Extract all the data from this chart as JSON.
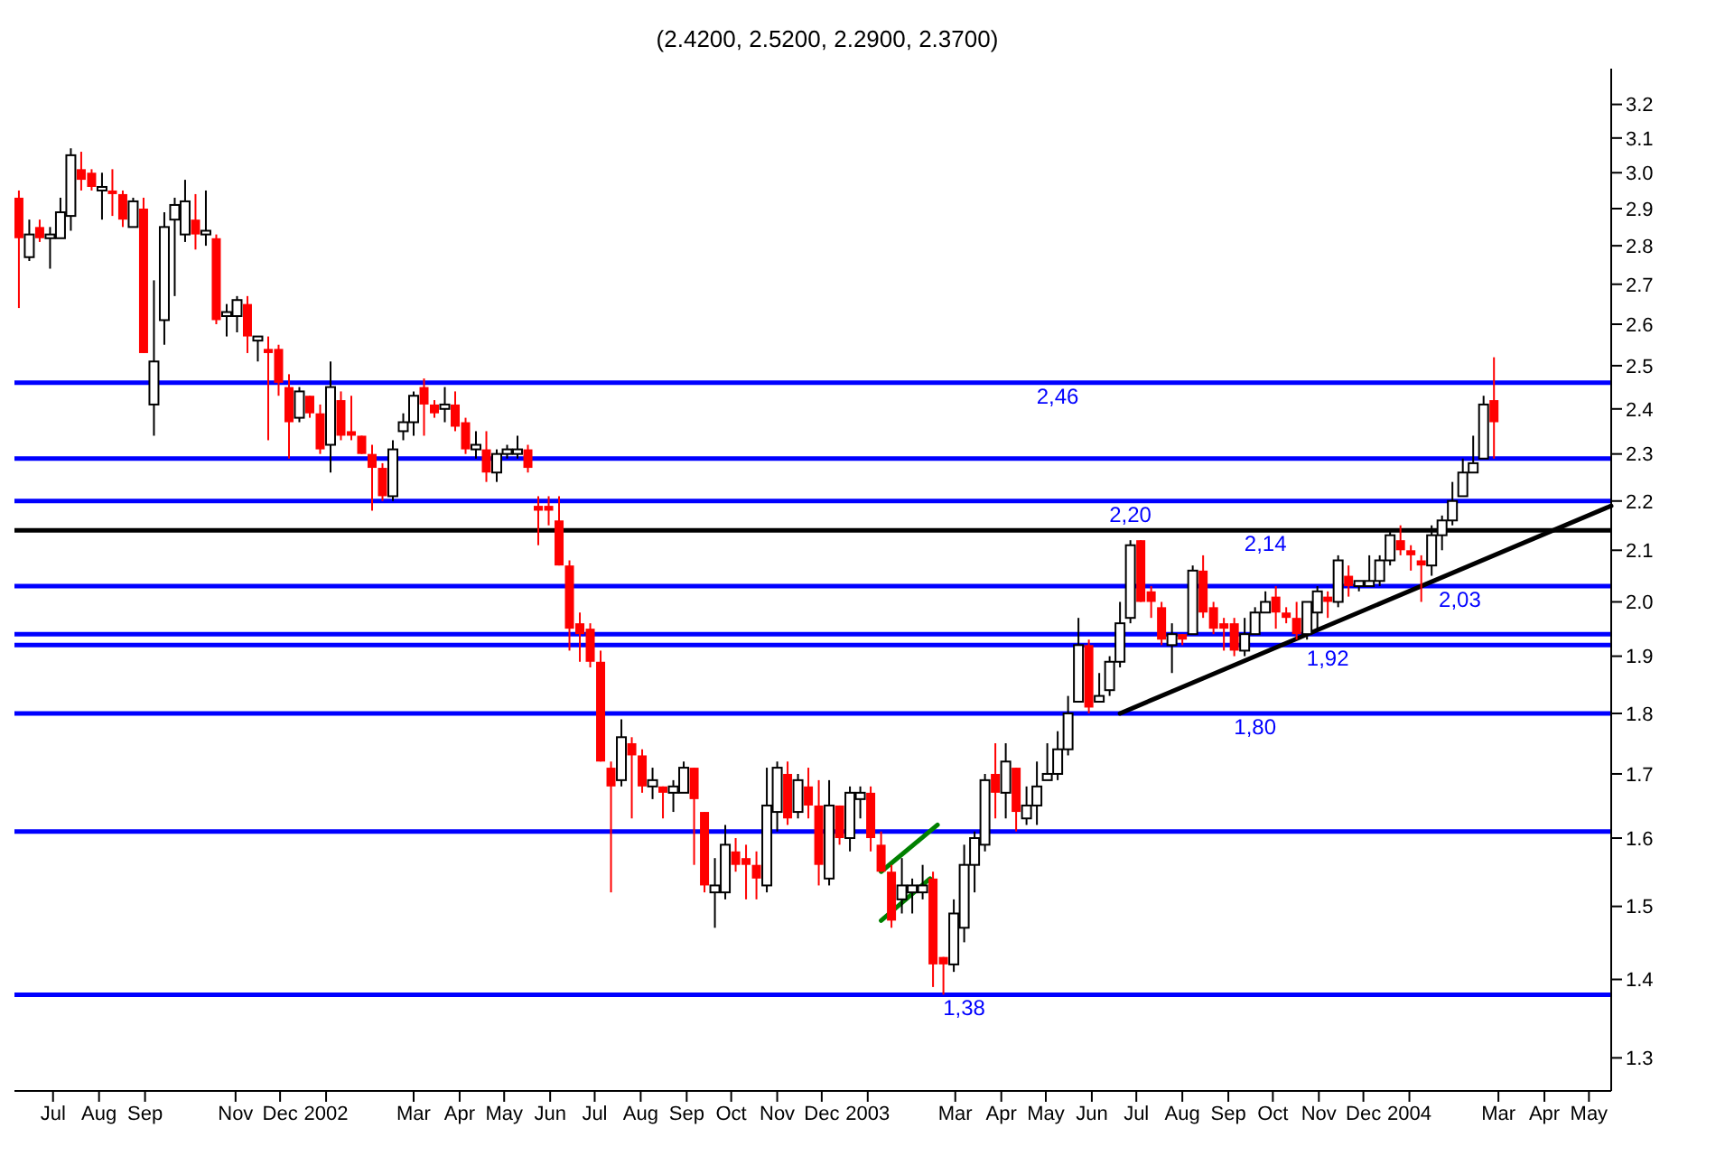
{
  "chart_data": {
    "type": "candlestick",
    "title": "(2.4200, 2.5200, 2.2900, 2.3700)",
    "x": [
      "2001-06-08",
      "2001-06-15",
      "2001-06-22",
      "2001-06-29",
      "2001-07-06",
      "2001-07-13",
      "2001-07-20",
      "2001-07-27",
      "2001-08-03",
      "2001-08-10",
      "2001-08-17",
      "2001-08-24",
      "2001-08-31",
      "2001-09-07",
      "2001-09-14",
      "2001-09-21",
      "2001-09-28",
      "2001-10-05",
      "2001-10-12",
      "2001-10-19",
      "2001-10-26",
      "2001-11-02",
      "2001-11-09",
      "2001-11-16",
      "2001-11-23",
      "2001-11-30",
      "2001-12-07",
      "2001-12-14",
      "2001-12-21",
      "2001-12-28",
      "2002-01-04",
      "2002-01-11",
      "2002-01-18",
      "2002-01-25",
      "2002-02-01",
      "2002-02-08",
      "2002-02-15",
      "2002-02-22",
      "2002-03-01",
      "2002-03-08",
      "2002-03-15",
      "2002-03-22",
      "2002-03-29",
      "2002-04-05",
      "2002-04-12",
      "2002-04-19",
      "2002-04-26",
      "2002-05-03",
      "2002-05-10",
      "2002-05-17",
      "2002-05-24",
      "2002-05-31",
      "2002-06-07",
      "2002-06-14",
      "2002-06-21",
      "2002-06-28",
      "2002-07-05",
      "2002-07-12",
      "2002-07-19",
      "2002-07-26",
      "2002-08-02",
      "2002-08-09",
      "2002-08-16",
      "2002-08-23",
      "2002-08-30",
      "2002-09-06",
      "2002-09-13",
      "2002-09-20",
      "2002-09-27",
      "2002-10-04",
      "2002-10-11",
      "2002-10-18",
      "2002-10-25",
      "2002-11-01",
      "2002-11-08",
      "2002-11-15",
      "2002-11-22",
      "2002-11-29",
      "2002-12-06",
      "2002-12-13",
      "2002-12-20",
      "2002-12-27",
      "2003-01-03",
      "2003-01-10",
      "2003-01-17",
      "2003-01-24",
      "2003-01-31",
      "2003-02-07",
      "2003-02-14",
      "2003-02-21",
      "2003-02-28",
      "2003-03-07",
      "2003-03-14",
      "2003-03-21",
      "2003-03-28",
      "2003-04-04",
      "2003-04-11",
      "2003-04-18",
      "2003-04-25",
      "2003-05-02",
      "2003-05-09",
      "2003-05-16",
      "2003-05-23",
      "2003-05-30",
      "2003-06-06",
      "2003-06-13",
      "2003-06-20",
      "2003-06-27",
      "2003-07-04",
      "2003-07-11",
      "2003-07-18",
      "2003-07-25",
      "2003-08-01",
      "2003-08-08",
      "2003-08-15",
      "2003-08-22",
      "2003-08-29",
      "2003-09-05",
      "2003-09-12",
      "2003-09-19",
      "2003-09-26",
      "2003-10-03",
      "2003-10-10",
      "2003-10-17",
      "2003-10-24",
      "2003-10-31",
      "2003-11-07",
      "2003-11-14",
      "2003-11-21",
      "2003-11-28",
      "2003-12-05",
      "2003-12-12",
      "2003-12-19",
      "2003-12-26",
      "2004-01-02",
      "2004-01-09",
      "2004-01-16",
      "2004-01-23",
      "2004-01-30",
      "2004-02-06",
      "2004-02-13",
      "2004-02-20",
      "2004-02-27"
    ],
    "ohlc": [
      [
        2.93,
        2.95,
        2.64,
        2.82
      ],
      [
        2.77,
        2.87,
        2.76,
        2.83
      ],
      [
        2.85,
        2.87,
        2.81,
        2.82
      ],
      [
        2.82,
        2.85,
        2.74,
        2.83
      ],
      [
        2.82,
        2.93,
        2.82,
        2.89
      ],
      [
        2.88,
        3.07,
        2.84,
        3.05
      ],
      [
        3.01,
        3.06,
        2.95,
        2.98
      ],
      [
        3.0,
        3.01,
        2.95,
        2.96
      ],
      [
        2.95,
        3.0,
        2.87,
        2.96
      ],
      [
        2.95,
        3.01,
        2.88,
        2.94
      ],
      [
        2.94,
        2.95,
        2.85,
        2.87
      ],
      [
        2.85,
        2.93,
        2.85,
        2.92
      ],
      [
        2.9,
        2.93,
        2.53,
        2.53
      ],
      [
        2.41,
        2.71,
        2.34,
        2.51
      ],
      [
        2.61,
        2.89,
        2.55,
        2.85
      ],
      [
        2.87,
        2.93,
        2.67,
        2.91
      ],
      [
        2.83,
        2.98,
        2.81,
        2.92
      ],
      [
        2.87,
        2.94,
        2.79,
        2.83
      ],
      [
        2.83,
        2.95,
        2.8,
        2.84
      ],
      [
        2.82,
        2.83,
        2.6,
        2.61
      ],
      [
        2.62,
        2.65,
        2.57,
        2.63
      ],
      [
        2.62,
        2.67,
        2.58,
        2.66
      ],
      [
        2.65,
        2.67,
        2.53,
        2.57
      ],
      [
        2.56,
        2.57,
        2.51,
        2.57
      ],
      [
        2.54,
        2.57,
        2.33,
        2.53
      ],
      [
        2.54,
        2.55,
        2.43,
        2.46
      ],
      [
        2.45,
        2.48,
        2.29,
        2.37
      ],
      [
        2.38,
        2.45,
        2.37,
        2.44
      ],
      [
        2.43,
        2.43,
        2.38,
        2.39
      ],
      [
        2.39,
        2.41,
        2.3,
        2.31
      ],
      [
        2.32,
        2.51,
        2.26,
        2.45
      ],
      [
        2.42,
        2.44,
        2.33,
        2.34
      ],
      [
        2.35,
        2.43,
        2.33,
        2.34
      ],
      [
        2.34,
        2.34,
        2.3,
        2.3
      ],
      [
        2.3,
        2.32,
        2.18,
        2.27
      ],
      [
        2.27,
        2.28,
        2.2,
        2.21
      ],
      [
        2.21,
        2.33,
        2.2,
        2.31
      ],
      [
        2.35,
        2.39,
        2.33,
        2.37
      ],
      [
        2.37,
        2.44,
        2.34,
        2.43
      ],
      [
        2.45,
        2.47,
        2.34,
        2.41
      ],
      [
        2.41,
        2.42,
        2.38,
        2.39
      ],
      [
        2.4,
        2.45,
        2.37,
        2.41
      ],
      [
        2.41,
        2.44,
        2.35,
        2.36
      ],
      [
        2.37,
        2.38,
        2.3,
        2.31
      ],
      [
        2.31,
        2.35,
        2.29,
        2.32
      ],
      [
        2.31,
        2.35,
        2.24,
        2.26
      ],
      [
        2.26,
        2.31,
        2.24,
        2.3
      ],
      [
        2.3,
        2.32,
        2.29,
        2.31
      ],
      [
        2.3,
        2.34,
        2.29,
        2.31
      ],
      [
        2.31,
        2.32,
        2.26,
        2.27
      ],
      [
        2.19,
        2.21,
        2.11,
        2.18
      ],
      [
        2.19,
        2.21,
        2.15,
        2.18
      ],
      [
        2.16,
        2.21,
        2.07,
        2.07
      ],
      [
        2.07,
        2.08,
        1.91,
        1.95
      ],
      [
        1.96,
        1.98,
        1.89,
        1.94
      ],
      [
        1.95,
        1.96,
        1.88,
        1.89
      ],
      [
        1.89,
        1.91,
        1.72,
        1.72
      ],
      [
        1.71,
        1.72,
        1.52,
        1.68
      ],
      [
        1.69,
        1.79,
        1.68,
        1.76
      ],
      [
        1.75,
        1.76,
        1.63,
        1.73
      ],
      [
        1.73,
        1.74,
        1.67,
        1.68
      ],
      [
        1.68,
        1.71,
        1.66,
        1.69
      ],
      [
        1.68,
        1.68,
        1.63,
        1.67
      ],
      [
        1.67,
        1.69,
        1.64,
        1.68
      ],
      [
        1.67,
        1.72,
        1.67,
        1.71
      ],
      [
        1.71,
        1.71,
        1.56,
        1.66
      ],
      [
        1.64,
        1.64,
        1.52,
        1.53
      ],
      [
        1.52,
        1.57,
        1.47,
        1.53
      ],
      [
        1.52,
        1.62,
        1.51,
        1.59
      ],
      [
        1.58,
        1.6,
        1.55,
        1.56
      ],
      [
        1.57,
        1.59,
        1.51,
        1.56
      ],
      [
        1.56,
        1.58,
        1.51,
        1.54
      ],
      [
        1.53,
        1.71,
        1.52,
        1.65
      ],
      [
        1.64,
        1.72,
        1.61,
        1.71
      ],
      [
        1.7,
        1.72,
        1.62,
        1.63
      ],
      [
        1.64,
        1.7,
        1.63,
        1.69
      ],
      [
        1.68,
        1.71,
        1.63,
        1.65
      ],
      [
        1.65,
        1.69,
        1.53,
        1.56
      ],
      [
        1.54,
        1.69,
        1.53,
        1.65
      ],
      [
        1.65,
        1.65,
        1.59,
        1.6
      ],
      [
        1.6,
        1.68,
        1.58,
        1.67
      ],
      [
        1.66,
        1.68,
        1.63,
        1.67
      ],
      [
        1.67,
        1.68,
        1.58,
        1.6
      ],
      [
        1.59,
        1.61,
        1.55,
        1.55
      ],
      [
        1.55,
        1.56,
        1.47,
        1.48
      ],
      [
        1.51,
        1.57,
        1.49,
        1.53
      ],
      [
        1.52,
        1.54,
        1.49,
        1.53
      ],
      [
        1.52,
        1.56,
        1.51,
        1.53
      ],
      [
        1.54,
        1.55,
        1.39,
        1.42
      ],
      [
        1.43,
        1.43,
        1.38,
        1.42
      ],
      [
        1.42,
        1.51,
        1.41,
        1.49
      ],
      [
        1.47,
        1.59,
        1.45,
        1.56
      ],
      [
        1.56,
        1.61,
        1.52,
        1.6
      ],
      [
        1.59,
        1.7,
        1.58,
        1.69
      ],
      [
        1.7,
        1.75,
        1.63,
        1.67
      ],
      [
        1.67,
        1.75,
        1.63,
        1.72
      ],
      [
        1.71,
        1.71,
        1.61,
        1.64
      ],
      [
        1.63,
        1.68,
        1.62,
        1.65
      ],
      [
        1.65,
        1.72,
        1.62,
        1.68
      ],
      [
        1.69,
        1.75,
        1.69,
        1.7
      ],
      [
        1.7,
        1.77,
        1.69,
        1.74
      ],
      [
        1.74,
        1.83,
        1.73,
        1.8
      ],
      [
        1.82,
        1.97,
        1.82,
        1.92
      ],
      [
        1.92,
        1.93,
        1.8,
        1.81
      ],
      [
        1.82,
        1.87,
        1.82,
        1.83
      ],
      [
        1.84,
        1.9,
        1.83,
        1.89
      ],
      [
        1.89,
        2.0,
        1.88,
        1.96
      ],
      [
        1.97,
        2.12,
        1.96,
        2.11
      ],
      [
        2.12,
        2.12,
        2.0,
        2.0
      ],
      [
        2.02,
        2.03,
        1.97,
        2.0
      ],
      [
        1.99,
        2.0,
        1.92,
        1.93
      ],
      [
        1.92,
        1.96,
        1.87,
        1.94
      ],
      [
        1.94,
        1.94,
        1.92,
        1.93
      ],
      [
        1.94,
        2.07,
        1.94,
        2.06
      ],
      [
        2.06,
        2.09,
        1.97,
        1.98
      ],
      [
        1.99,
        2.0,
        1.94,
        1.95
      ],
      [
        1.96,
        1.97,
        1.91,
        1.95
      ],
      [
        1.96,
        1.97,
        1.9,
        1.91
      ],
      [
        1.91,
        1.97,
        1.9,
        1.94
      ],
      [
        1.94,
        1.99,
        1.94,
        1.98
      ],
      [
        1.98,
        2.02,
        1.98,
        2.0
      ],
      [
        2.01,
        2.03,
        1.95,
        1.98
      ],
      [
        1.98,
        1.99,
        1.96,
        1.97
      ],
      [
        1.97,
        2.0,
        1.93,
        1.94
      ],
      [
        1.94,
        2.0,
        1.93,
        2.0
      ],
      [
        1.98,
        2.03,
        1.95,
        2.02
      ],
      [
        2.01,
        2.02,
        1.97,
        2.0
      ],
      [
        2.0,
        2.09,
        1.99,
        2.08
      ],
      [
        2.05,
        2.07,
        2.01,
        2.03
      ],
      [
        2.03,
        2.04,
        2.02,
        2.04
      ],
      [
        2.03,
        2.09,
        2.03,
        2.04
      ],
      [
        2.04,
        2.09,
        2.03,
        2.08
      ],
      [
        2.08,
        2.14,
        2.07,
        2.13
      ],
      [
        2.12,
        2.15,
        2.09,
        2.1
      ],
      [
        2.1,
        2.11,
        2.06,
        2.09
      ],
      [
        2.08,
        2.09,
        2.0,
        2.07
      ],
      [
        2.07,
        2.15,
        2.05,
        2.13
      ],
      [
        2.13,
        2.17,
        2.1,
        2.16
      ],
      [
        2.16,
        2.24,
        2.15,
        2.2
      ],
      [
        2.21,
        2.29,
        2.21,
        2.26
      ],
      [
        2.26,
        2.34,
        2.26,
        2.28
      ],
      [
        2.29,
        2.43,
        2.29,
        2.41
      ],
      [
        2.42,
        2.52,
        2.29,
        2.37
      ]
    ],
    "colors": [
      "#ff0000",
      "#ffffff",
      "#ff0000",
      "#ffffff",
      "#ffffff",
      "#ffffff",
      "#ff0000",
      "#ff0000",
      "#ffffff",
      "#ff0000",
      "#ff0000",
      "#ffffff",
      "#ff0000",
      "#ffffff",
      "#ffffff",
      "#ffffff",
      "#ffffff",
      "#ff0000",
      "#ffffff",
      "#ff0000",
      "#ffffff",
      "#ffffff",
      "#ff0000",
      "#ffffff",
      "#ff0000",
      "#ff0000",
      "#ff0000",
      "#ffffff",
      "#ff0000",
      "#ff0000",
      "#ffffff",
      "#ff0000",
      "#ff0000",
      "#ff0000",
      "#ff0000",
      "#ff0000",
      "#ffffff",
      "#ffffff",
      "#ffffff",
      "#ff0000",
      "#ff0000",
      "#ffffff",
      "#ff0000",
      "#ff0000",
      "#ffffff",
      "#ff0000",
      "#ffffff",
      "#ffffff",
      "#ffffff",
      "#ff0000",
      "#ff0000",
      "#ff0000",
      "#ff0000",
      "#ff0000",
      "#ff0000",
      "#ff0000",
      "#ff0000",
      "#ff0000",
      "#ffffff",
      "#ff0000",
      "#ff0000",
      "#ffffff",
      "#ff0000",
      "#ffffff",
      "#ffffff",
      "#ff0000",
      "#ff0000",
      "#ffffff",
      "#ffffff",
      "#ff0000",
      "#ff0000",
      "#ff0000",
      "#ffffff",
      "#ffffff",
      "#ff0000",
      "#ffffff",
      "#ff0000",
      "#ff0000",
      "#ffffff",
      "#ff0000",
      "#ffffff",
      "#ffffff",
      "#ff0000",
      "#ff0000",
      "#ff0000",
      "#ffffff",
      "#ffffff",
      "#ffffff",
      "#ff0000",
      "#ff0000",
      "#ffffff",
      "#ffffff",
      "#ffffff",
      "#ffffff",
      "#ff0000",
      "#ffffff",
      "#ff0000",
      "#ffffff",
      "#ffffff",
      "#ffffff",
      "#ffffff",
      "#ffffff",
      "#ffffff",
      "#ff0000",
      "#ffffff",
      "#ffffff",
      "#ffffff",
      "#ffffff",
      "#ff0000",
      "#ff0000",
      "#ff0000",
      "#ffffff",
      "#ff0000",
      "#ffffff",
      "#ff0000",
      "#ff0000",
      "#ff0000",
      "#ff0000",
      "#ffffff",
      "#ffffff",
      "#ffffff",
      "#ff0000",
      "#ff0000",
      "#ff0000",
      "#ffffff",
      "#ffffff",
      "#ff0000",
      "#ffffff",
      "#ff0000",
      "#ffffff",
      "#ffffff",
      "#ffffff",
      "#ffffff",
      "#ff0000",
      "#ff0000",
      "#ff0000",
      "#ffffff",
      "#ffffff",
      "#ffffff",
      "#ffffff",
      "#ffffff",
      "#ffffff",
      "#ff0000"
    ],
    "series": [
      {
        "type": "line",
        "color": "#000000",
        "x": [
          "2003-06-20",
          "2004-05-16"
        ],
        "values": [
          1.8,
          2.19
        ]
      },
      {
        "type": "line",
        "color": "#008000",
        "x": [
          "2003-01-10",
          "2003-02-17"
        ],
        "values": [
          1.55,
          1.62
        ]
      },
      {
        "type": "line",
        "color": "#008000",
        "x": [
          "2003-01-10",
          "2003-02-12"
        ],
        "values": [
          1.48,
          1.54
        ]
      }
    ],
    "ref_lines": [
      {
        "axis": "y",
        "value": 2.46,
        "color": "#0000ff"
      },
      {
        "axis": "y",
        "value": 2.29,
        "color": "#0000ff"
      },
      {
        "axis": "y",
        "value": 2.2,
        "color": "#0000ff"
      },
      {
        "axis": "y",
        "value": 2.14,
        "color": "#000000"
      },
      {
        "axis": "y",
        "value": 2.03,
        "color": "#0000ff"
      },
      {
        "axis": "y",
        "value": 1.94,
        "color": "#0000ff"
      },
      {
        "axis": "y",
        "value": 1.92,
        "color": "#0000ff"
      },
      {
        "axis": "y",
        "value": 1.8,
        "color": "#0000ff"
      },
      {
        "axis": "y",
        "value": 1.61,
        "color": "#0000ff"
      },
      {
        "axis": "y",
        "value": 1.38,
        "color": "#0000ff"
      }
    ],
    "annotations": [
      {
        "text": "2,46",
        "x": "2003-05-09",
        "y": 2.46
      },
      {
        "text": "2,20",
        "x": "2003-06-27",
        "y": 2.2
      },
      {
        "text": "2,14",
        "x": "2003-09-26",
        "y": 2.14
      },
      {
        "text": "2,03",
        "x": "2004-02-04",
        "y": 2.03
      },
      {
        "text": "1,92",
        "x": "2003-11-07",
        "y": 1.92
      },
      {
        "text": "1,80",
        "x": "2003-09-19",
        "y": 1.8
      },
      {
        "text": "1,38",
        "x": "2003-03-07",
        "y": 1.38
      }
    ],
    "log": "y",
    "xlim": [
      "2001-06-05",
      "2004-05-16"
    ],
    "xticks": [
      {
        "value": "2001-07-01",
        "label": "Jul"
      },
      {
        "value": "2001-08-01",
        "label": "Aug"
      },
      {
        "value": "2001-09-01",
        "label": "Sep"
      },
      {
        "value": "2001-11-01",
        "label": "Nov"
      },
      {
        "value": "2001-12-01",
        "label": "Dec"
      },
      {
        "value": "2002-01-01",
        "label": "2002"
      },
      {
        "value": "2002-03-01",
        "label": "Mar"
      },
      {
        "value": "2002-04-01",
        "label": "Apr"
      },
      {
        "value": "2002-05-01",
        "label": "May"
      },
      {
        "value": "2002-06-01",
        "label": "Jun"
      },
      {
        "value": "2002-07-01",
        "label": "Jul"
      },
      {
        "value": "2002-08-01",
        "label": "Aug"
      },
      {
        "value": "2002-09-01",
        "label": "Sep"
      },
      {
        "value": "2002-10-01",
        "label": "Oct"
      },
      {
        "value": "2002-11-01",
        "label": "Nov"
      },
      {
        "value": "2002-12-01",
        "label": "Dec"
      },
      {
        "value": "2003-01-01",
        "label": "2003"
      },
      {
        "value": "2003-03-01",
        "label": "Mar"
      },
      {
        "value": "2003-04-01",
        "label": "Apr"
      },
      {
        "value": "2003-05-01",
        "label": "May"
      },
      {
        "value": "2003-06-01",
        "label": "Jun"
      },
      {
        "value": "2003-07-01",
        "label": "Jul"
      },
      {
        "value": "2003-08-01",
        "label": "Aug"
      },
      {
        "value": "2003-09-01",
        "label": "Sep"
      },
      {
        "value": "2003-10-01",
        "label": "Oct"
      },
      {
        "value": "2003-11-01",
        "label": "Nov"
      },
      {
        "value": "2003-12-01",
        "label": "Dec"
      },
      {
        "value": "2004-01-01",
        "label": "2004"
      },
      {
        "value": "2004-03-01",
        "label": "Mar"
      },
      {
        "value": "2004-04-01",
        "label": "Apr"
      },
      {
        "value": "2004-05-01",
        "label": "May"
      }
    ],
    "ylim": [
      1.26,
      3.31
    ],
    "yticks": [
      1.3,
      1.4,
      1.5,
      1.6,
      1.7,
      1.8,
      1.9,
      {
        "value": 2,
        "label": "2.0"
      },
      2.1,
      2.2,
      2.3,
      2.4,
      2.5,
      2.6,
      2.7,
      2.8,
      2.9,
      {
        "value": 3,
        "label": "3.0"
      },
      3.1,
      3.2
    ]
  }
}
